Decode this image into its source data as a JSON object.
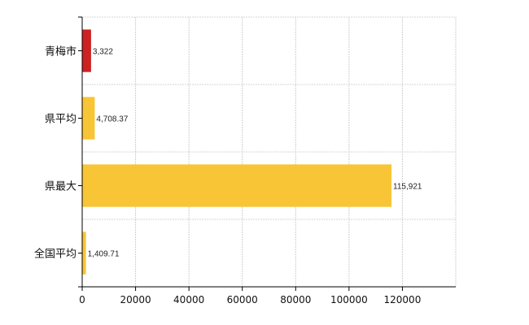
{
  "chart_data": {
    "type": "bar",
    "orientation": "horizontal",
    "categories": [
      "青梅市",
      "県平均",
      "県最大",
      "全国平均"
    ],
    "values": [
      3322,
      4708.37,
      115921,
      1409.71
    ],
    "value_labels": [
      "3,322",
      "4,708.37",
      "115,921",
      "1,409.71"
    ],
    "bar_colors": [
      "#cc2222",
      "#f7c535",
      "#f7c535",
      "#f7c535"
    ],
    "x_ticks": [
      0,
      20000,
      40000,
      60000,
      80000,
      100000,
      120000
    ],
    "x_tick_labels": [
      "0",
      "20000",
      "40000",
      "60000",
      "80000",
      "100000",
      "120000"
    ],
    "xlim": [
      0,
      140000
    ],
    "grid": true,
    "title": "",
    "xlabel": "",
    "ylabel": ""
  }
}
